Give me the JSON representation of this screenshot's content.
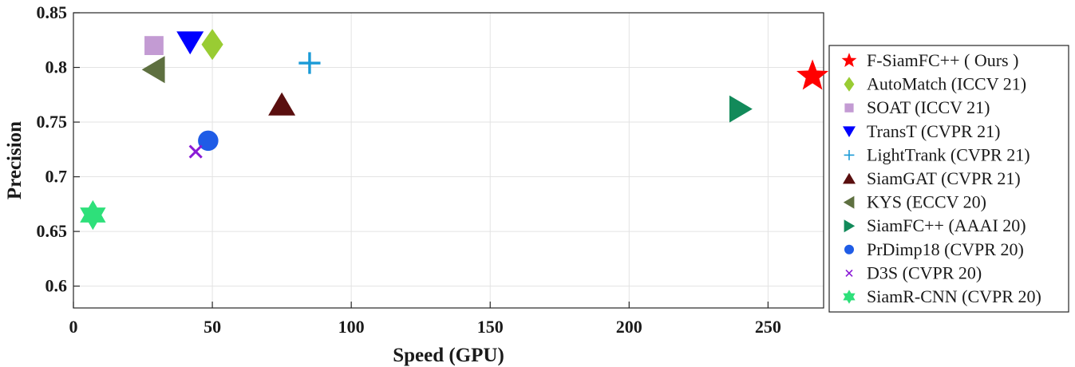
{
  "chart_data": {
    "type": "scatter",
    "xlabel": "Speed (GPU)",
    "ylabel": "Precision",
    "xlim": [
      0,
      270
    ],
    "ylim": [
      0.58,
      0.85
    ],
    "xticks": [
      0,
      50,
      100,
      150,
      200,
      250
    ],
    "yticks": [
      0.6,
      0.65,
      0.7,
      0.75,
      0.8,
      0.85
    ],
    "xtick_labels": [
      "0",
      "50",
      "100",
      "150",
      "200",
      "250"
    ],
    "ytick_labels": [
      "0.6",
      "0.65",
      "0.7",
      "0.75",
      "0.8",
      "0.85"
    ],
    "grid": true,
    "legend_position": "right",
    "series": [
      {
        "name": "F-SiamFC++ ( Ours )",
        "x": 266,
        "y": 0.792,
        "marker": "star5",
        "color": "#ff0000"
      },
      {
        "name": "AutoMatch (ICCV 21)",
        "x": 50,
        "y": 0.821,
        "marker": "diamond",
        "color": "#99cc33"
      },
      {
        "name": "SOAT (ICCV 21)",
        "x": 29,
        "y": 0.82,
        "marker": "square",
        "color": "#c39bd3"
      },
      {
        "name": "TransT (CVPR 21)",
        "x": 42,
        "y": 0.823,
        "marker": "triangle-down",
        "color": "#0000ff"
      },
      {
        "name": "LightTrank (CVPR 21)",
        "x": 85,
        "y": 0.804,
        "marker": "plus",
        "color": "#1a9ad6"
      },
      {
        "name": "SiamGAT (CVPR 21)",
        "x": 75,
        "y": 0.766,
        "marker": "triangle-up",
        "color": "#5a0f0f"
      },
      {
        "name": "KYS (ECCV 20)",
        "x": 29,
        "y": 0.798,
        "marker": "triangle-left",
        "color": "#5e7040"
      },
      {
        "name": "SiamFC++ (AAAI 20)",
        "x": 240,
        "y": 0.762,
        "marker": "triangle-right",
        "color": "#128a5a"
      },
      {
        "name": "PrDimp18 (CVPR 20)",
        "x": 48.5,
        "y": 0.733,
        "marker": "circle",
        "color": "#1f5ce6"
      },
      {
        "name": "D3S (CVPR 20)",
        "x": 44,
        "y": 0.723,
        "marker": "x",
        "color": "#8a1ad6"
      },
      {
        "name": "SiamR-CNN (CVPR 20)",
        "x": 7,
        "y": 0.665,
        "marker": "star6",
        "color": "#2ee07a"
      }
    ]
  }
}
